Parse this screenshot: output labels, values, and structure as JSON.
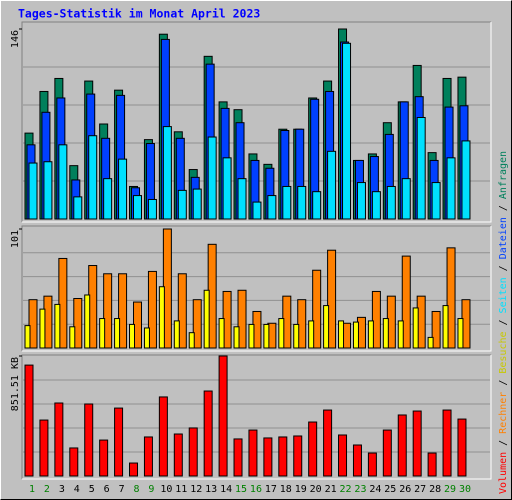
{
  "chart_data": [
    {
      "type": "bar",
      "title": "Tages-Statistik im Monat April 2023",
      "legend_separator": "/",
      "categories": [
        "1",
        "2",
        "3",
        "4",
        "5",
        "6",
        "7",
        "8",
        "9",
        "10",
        "11",
        "12",
        "13",
        "14",
        "15",
        "16",
        "17",
        "18",
        "19",
        "20",
        "21",
        "22",
        "23",
        "24",
        "25",
        "26",
        "27",
        "28",
        "29",
        "30"
      ],
      "category_colors": [
        "#008000",
        "#008000",
        "#000000",
        "#000000",
        "#000000",
        "#000000",
        "#000000",
        "#008000",
        "#008000",
        "#000000",
        "#000000",
        "#000000",
        "#000000",
        "#000000",
        "#008000",
        "#008000",
        "#000000",
        "#000000",
        "#000000",
        "#000000",
        "#000000",
        "#008000",
        "#008000",
        "#000000",
        "#000000",
        "#000000",
        "#000000",
        "#000000",
        "#008000",
        "#008000"
      ],
      "ylim": [
        0,
        146
      ],
      "yticks": [
        146
      ],
      "series": [
        {
          "name": "Anfragen",
          "color": "#00805c",
          "values": [
            66,
            98,
            108,
            41,
            106,
            73,
            99,
            25,
            61,
            142,
            67,
            38,
            125,
            90,
            84,
            50,
            42,
            69,
            69,
            93,
            106,
            146,
            45,
            50,
            74,
            90,
            118,
            51,
            108,
            109
          ]
        },
        {
          "name": "Dateien",
          "color": "#0040ff",
          "values": [
            57,
            82,
            93,
            30,
            96,
            62,
            95,
            24,
            58,
            138,
            62,
            32,
            119,
            85,
            74,
            45,
            39,
            68,
            69,
            92,
            98,
            136,
            45,
            48,
            65,
            90,
            94,
            45,
            86,
            87
          ]
        },
        {
          "name": "Seiten",
          "color": "#00e0ff",
          "values": [
            43,
            44,
            57,
            17,
            64,
            31,
            46,
            18,
            15,
            71,
            22,
            23,
            63,
            47,
            31,
            13,
            18,
            25,
            25,
            21,
            52,
            135,
            28,
            21,
            25,
            31,
            78,
            28,
            47,
            60
          ]
        }
      ]
    },
    {
      "type": "bar",
      "ylim": [
        0,
        101
      ],
      "yticks": [
        101
      ],
      "series": [
        {
          "name": "Besuche",
          "color": "#ffff00",
          "values": [
            19,
            33,
            37,
            18,
            45,
            25,
            25,
            20,
            17,
            52,
            23,
            13,
            49,
            25,
            18,
            20,
            20,
            25,
            20,
            23,
            36,
            23,
            22,
            23,
            25,
            23,
            34,
            9,
            36,
            25
          ]
        },
        {
          "name": "Rechner",
          "color": "#ff8000",
          "values": [
            41,
            44,
            76,
            42,
            70,
            63,
            63,
            39,
            65,
            101,
            63,
            41,
            88,
            48,
            49,
            31,
            21,
            44,
            41,
            66,
            83,
            21,
            26,
            48,
            44,
            78,
            44,
            31,
            85,
            41
          ]
        }
      ]
    },
    {
      "type": "bar",
      "ylim": [
        0,
        851.51
      ],
      "yticks": [
        {
          "value": 851.51,
          "label": "851.51 KB"
        }
      ],
      "series": [
        {
          "name": "Volumen",
          "color": "#ff0000",
          "values": [
            787,
            397,
            518,
            199,
            511,
            255,
            482,
            92,
            277,
            561,
            298,
            341,
            603,
            851.51,
            263,
            326,
            270,
            277,
            284,
            383,
            468,
            291,
            220,
            163,
            326,
            433,
            461,
            163,
            468,
            404
          ]
        }
      ]
    }
  ]
}
